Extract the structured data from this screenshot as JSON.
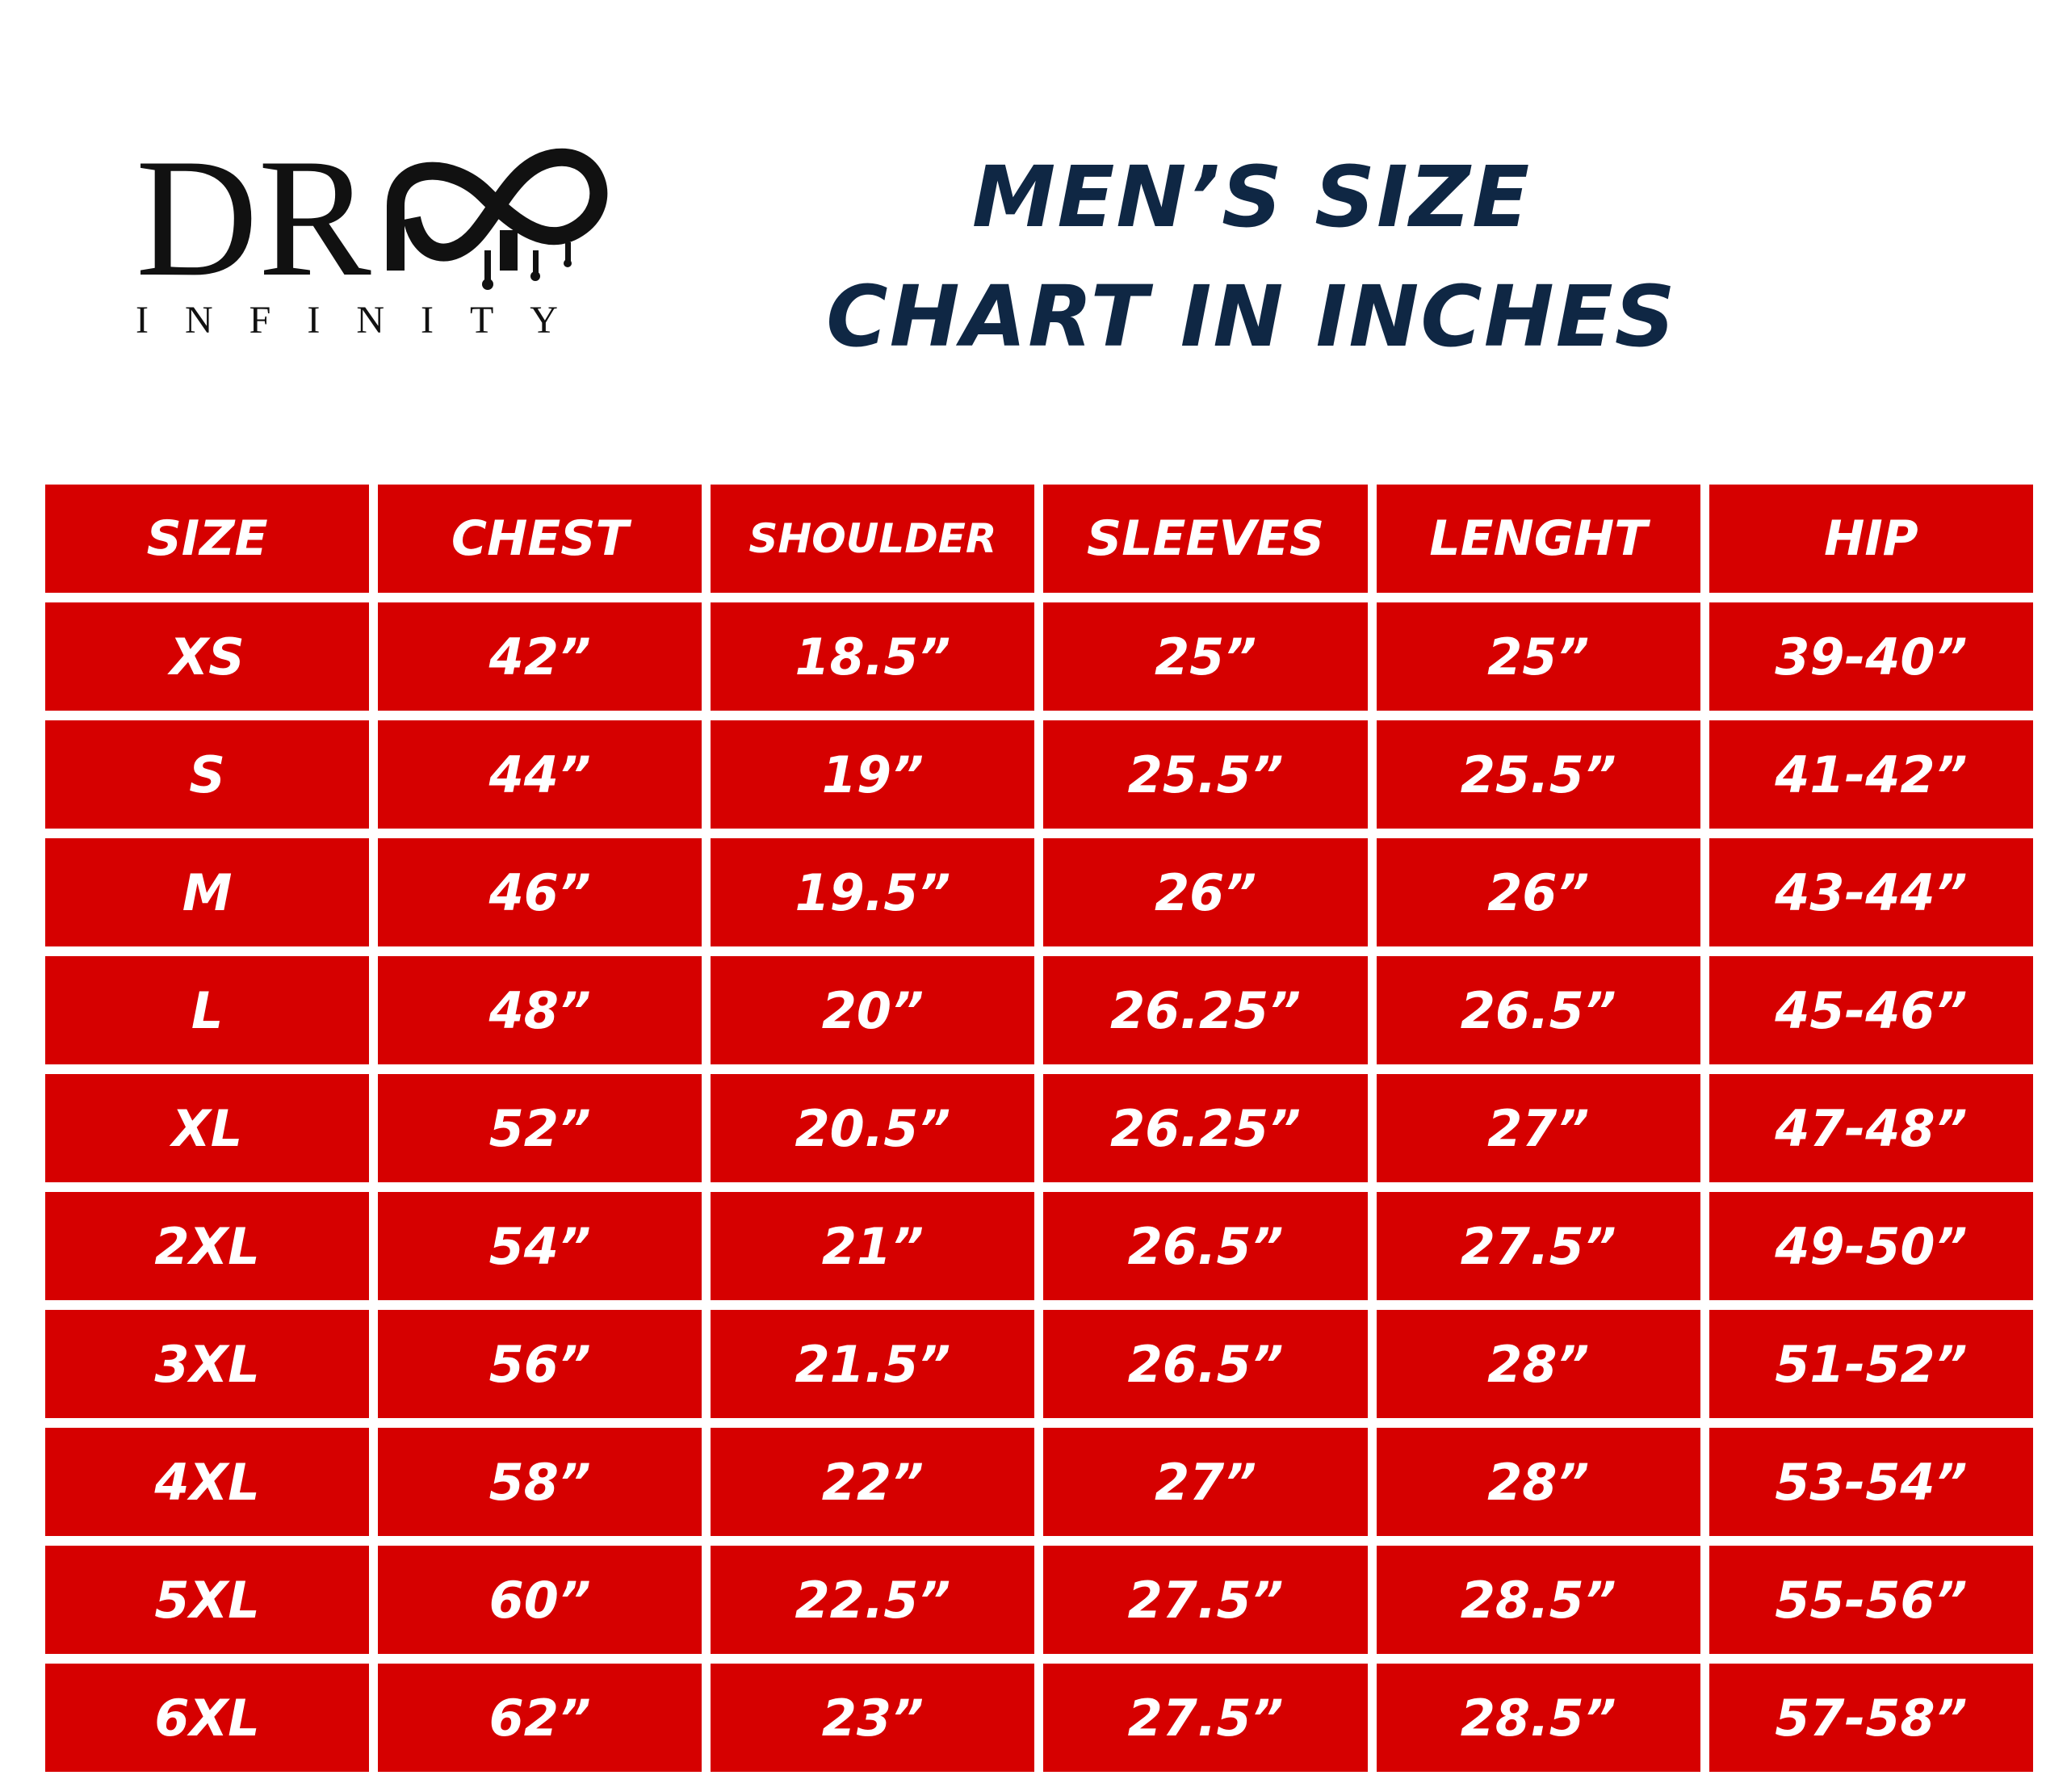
{
  "logo": {
    "wordmark": "DR",
    "tagline": "INFINITY"
  },
  "header": {
    "title_line_1": "MEN’S SIZE",
    "title_line_2": "CHART IN INCHES"
  },
  "table": {
    "columns": [
      "SIZE",
      "CHEST",
      "SHOULDER",
      "SLEEVES",
      "LENGHT",
      "HIP"
    ],
    "rows": [
      [
        "XS",
        "42”",
        "18.5”",
        "25”",
        "25”",
        "39-40”"
      ],
      [
        "S",
        "44”",
        "19”",
        "25.5”",
        "25.5”",
        "41-42”"
      ],
      [
        "M",
        "46”",
        "19.5”",
        "26”",
        "26”",
        "43-44”"
      ],
      [
        "L",
        "48”",
        "20”",
        "26.25”",
        "26.5”",
        "45-46”"
      ],
      [
        "XL",
        "52”",
        "20.5”",
        "26.25”",
        "27”",
        "47-48”"
      ],
      [
        "2XL",
        "54”",
        "21”",
        "26.5”",
        "27.5”",
        "49-50”"
      ],
      [
        "3XL",
        "56”",
        "21.5”",
        "26.5”",
        "28”",
        "51-52”"
      ],
      [
        "4XL",
        "58”",
        "22”",
        "27”",
        "28”",
        "53-54”"
      ],
      [
        "5XL",
        "60”",
        "22.5”",
        "27.5”",
        "28.5”",
        "55-56”"
      ],
      [
        "6XL",
        "62”",
        "23”",
        "27.5”",
        "28.5”",
        "57-58”"
      ]
    ]
  }
}
